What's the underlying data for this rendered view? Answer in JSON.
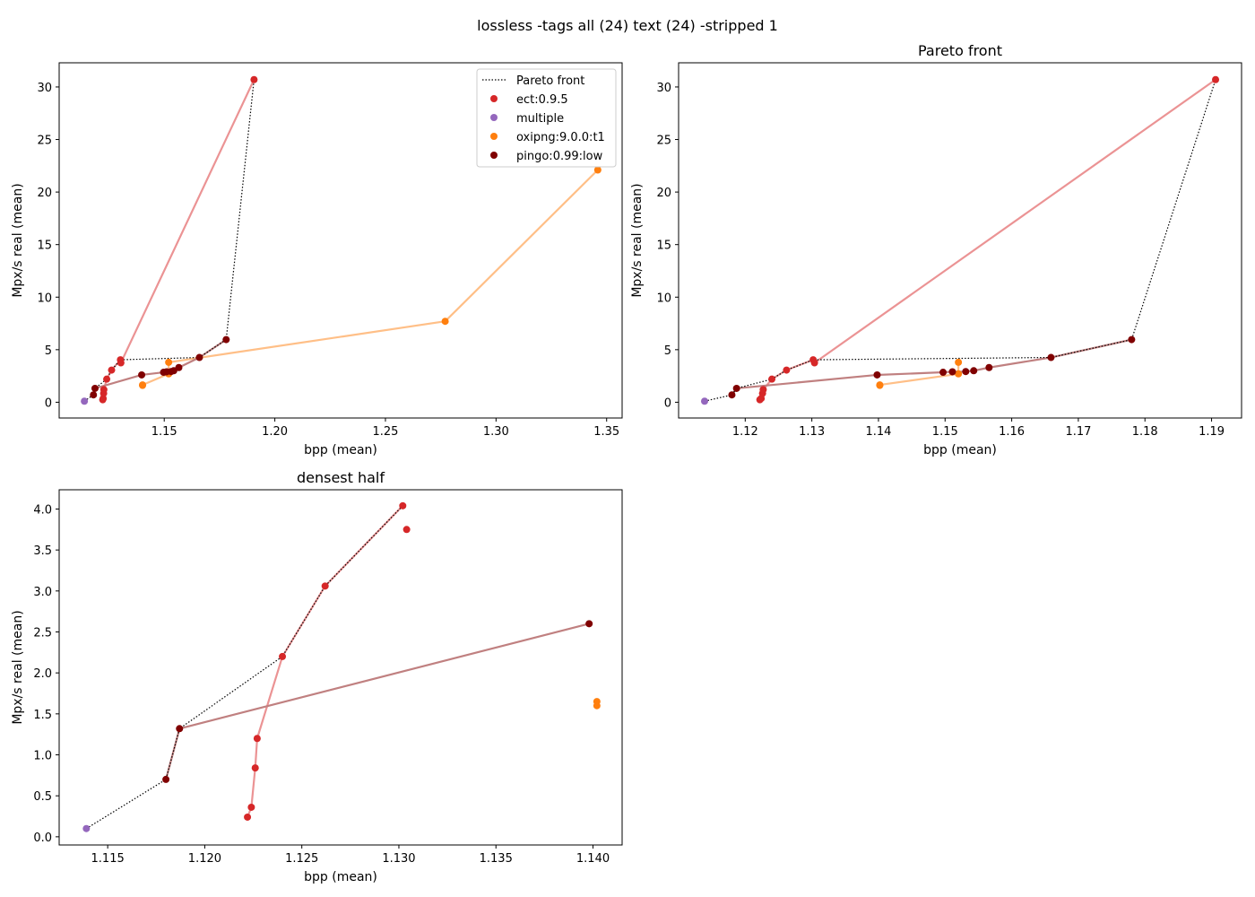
{
  "figure": {
    "suptitle": "lossless -tags all (24) text (24) -stripped 1"
  },
  "colors": {
    "ect:0.9.5": "#d62728",
    "multiple": "#9467bd",
    "oxipng:9.0.0:t1": "#ff7f0e",
    "pingo:0.99:low": "#800000",
    "pareto": "#000000"
  },
  "legend": {
    "placement": "top-right",
    "entries": [
      "Pareto front",
      "ect:0.9.5",
      "multiple",
      "oxipng:9.0.0:t1",
      "pingo:0.99:low"
    ]
  },
  "chart_data": [
    {
      "type": "scatter",
      "title": "",
      "xlabel": "bpp (mean)",
      "ylabel": "Mpx/s real (mean)",
      "xlim": [
        1.1025,
        1.357
      ],
      "ylim": [
        -1.5,
        32.3
      ],
      "xticks": [
        "1.15",
        "1.20",
        "1.25",
        "1.30",
        "1.35"
      ],
      "yticks": [
        "0",
        "5",
        "10",
        "15",
        "20",
        "25",
        "30"
      ],
      "legend": true,
      "pareto": [
        [
          1.1139,
          0.1
        ],
        [
          1.118,
          0.7
        ],
        [
          1.1187,
          1.32
        ],
        [
          1.124,
          2.2
        ],
        [
          1.1262,
          3.06
        ],
        [
          1.1302,
          4.04
        ],
        [
          1.1659,
          4.26
        ],
        [
          1.178,
          5.96
        ],
        [
          1.1906,
          30.7
        ]
      ],
      "series": [
        {
          "name": "ect:0.9.5",
          "line": true,
          "points": [
            [
              1.1222,
              0.24
            ],
            [
              1.1224,
              0.36
            ],
            [
              1.1226,
              0.84
            ],
            [
              1.1227,
              1.2
            ],
            [
              1.124,
              2.2
            ],
            [
              1.1262,
              3.06
            ],
            [
              1.1302,
              4.04
            ],
            [
              1.1304,
              3.75
            ],
            [
              1.1906,
              30.7
            ]
          ]
        },
        {
          "name": "multiple",
          "line": false,
          "points": [
            [
              1.1139,
              0.1
            ]
          ]
        },
        {
          "name": "oxipng:9.0.0:t1",
          "line": true,
          "points": [
            [
              1.1402,
              1.6
            ],
            [
              1.1402,
              1.65
            ],
            [
              1.152,
              2.7
            ],
            [
              1.152,
              3.8
            ],
            [
              1.277,
              7.7
            ],
            [
              1.346,
              22.1
            ]
          ]
        },
        {
          "name": "pingo:0.99:low",
          "line": true,
          "points": [
            [
              1.118,
              0.7
            ],
            [
              1.1187,
              1.32
            ],
            [
              1.1398,
              2.6
            ],
            [
              1.1497,
              2.85
            ],
            [
              1.1511,
              2.9
            ],
            [
              1.1531,
              2.92
            ],
            [
              1.1543,
              3.0
            ],
            [
              1.1566,
              3.3
            ],
            [
              1.1659,
              4.26
            ],
            [
              1.178,
              5.96
            ]
          ]
        }
      ]
    },
    {
      "type": "scatter",
      "title": "Pareto front",
      "xlabel": "bpp (mean)",
      "ylabel": "Mpx/s real (mean)",
      "xlim": [
        1.11,
        1.1945
      ],
      "ylim": [
        -1.5,
        32.3
      ],
      "xticks": [
        "1.12",
        "1.13",
        "1.14",
        "1.15",
        "1.16",
        "1.17",
        "1.18",
        "1.19"
      ],
      "yticks": [
        "0",
        "5",
        "10",
        "15",
        "20",
        "25",
        "30"
      ],
      "legend": false,
      "pareto": [
        [
          1.1139,
          0.1
        ],
        [
          1.118,
          0.7
        ],
        [
          1.1187,
          1.32
        ],
        [
          1.124,
          2.2
        ],
        [
          1.1262,
          3.06
        ],
        [
          1.1302,
          4.04
        ],
        [
          1.1659,
          4.26
        ],
        [
          1.178,
          5.96
        ],
        [
          1.1906,
          30.7
        ]
      ],
      "series": [
        {
          "name": "ect:0.9.5",
          "line": true,
          "points": [
            [
              1.1222,
              0.24
            ],
            [
              1.1224,
              0.36
            ],
            [
              1.1226,
              0.84
            ],
            [
              1.1227,
              1.2
            ],
            [
              1.124,
              2.2
            ],
            [
              1.1262,
              3.06
            ],
            [
              1.1302,
              4.04
            ],
            [
              1.1304,
              3.75
            ],
            [
              1.1906,
              30.7
            ]
          ]
        },
        {
          "name": "multiple",
          "line": false,
          "points": [
            [
              1.1139,
              0.1
            ]
          ]
        },
        {
          "name": "oxipng:9.0.0:t1",
          "line": true,
          "points": [
            [
              1.1402,
              1.6
            ],
            [
              1.1402,
              1.65
            ],
            [
              1.152,
              2.7
            ],
            [
              1.152,
              3.8
            ]
          ]
        },
        {
          "name": "pingo:0.99:low",
          "line": true,
          "points": [
            [
              1.118,
              0.7
            ],
            [
              1.1187,
              1.32
            ],
            [
              1.1398,
              2.6
            ],
            [
              1.1497,
              2.85
            ],
            [
              1.1511,
              2.9
            ],
            [
              1.1531,
              2.92
            ],
            [
              1.1543,
              3.0
            ],
            [
              1.1566,
              3.3
            ],
            [
              1.1659,
              4.26
            ],
            [
              1.178,
              5.96
            ]
          ]
        }
      ]
    },
    {
      "type": "scatter",
      "title": "densest half",
      "xlabel": "bpp (mean)",
      "ylabel": "Mpx/s real (mean)",
      "xlim": [
        1.1125,
        1.1415
      ],
      "ylim": [
        -0.1,
        4.235
      ],
      "xticks": [
        "1.115",
        "1.120",
        "1.125",
        "1.130",
        "1.135",
        "1.140"
      ],
      "yticks": [
        "0.0",
        "0.5",
        "1.0",
        "1.5",
        "2.0",
        "2.5",
        "3.0",
        "3.5",
        "4.0"
      ],
      "legend": false,
      "pareto": [
        [
          1.1139,
          0.1
        ],
        [
          1.118,
          0.7
        ],
        [
          1.1187,
          1.32
        ],
        [
          1.124,
          2.2
        ],
        [
          1.1262,
          3.06
        ],
        [
          1.1302,
          4.04
        ]
      ],
      "series": [
        {
          "name": "ect:0.9.5",
          "line": true,
          "points": [
            [
              1.1222,
              0.24
            ],
            [
              1.1224,
              0.36
            ],
            [
              1.1226,
              0.84
            ],
            [
              1.1227,
              1.2
            ],
            [
              1.124,
              2.2
            ],
            [
              1.1262,
              3.06
            ],
            [
              1.1302,
              4.04
            ]
          ]
        },
        {
          "name": "ect:0.9.5",
          "line": false,
          "points": [
            [
              1.1304,
              3.75
            ]
          ]
        },
        {
          "name": "multiple",
          "line": false,
          "points": [
            [
              1.1139,
              0.1
            ]
          ]
        },
        {
          "name": "oxipng:9.0.0:t1",
          "line": false,
          "points": [
            [
              1.1402,
              1.6
            ],
            [
              1.1402,
              1.65
            ]
          ]
        },
        {
          "name": "pingo:0.99:low",
          "line": true,
          "points": [
            [
              1.118,
              0.7
            ],
            [
              1.1187,
              1.32
            ],
            [
              1.1398,
              2.6
            ]
          ]
        }
      ]
    }
  ]
}
